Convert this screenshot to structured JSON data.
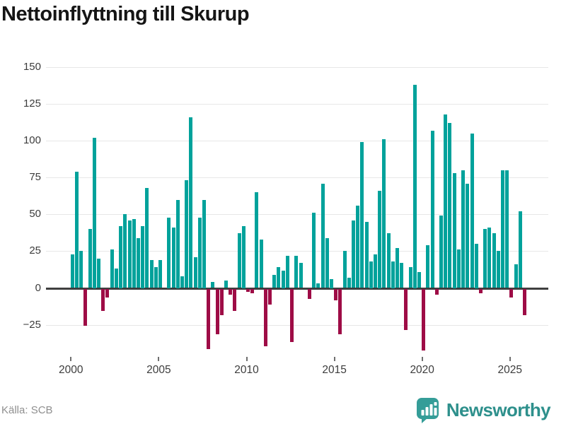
{
  "title": "Nettoinflyttning till Skurup",
  "footer": {
    "source": "Källa: SCB",
    "brand": "Newsworthy"
  },
  "colors": {
    "positive_bar": "#00a29b",
    "negative_bar": "#9e0c46",
    "gridline": "#e7e7e7",
    "zero_axis": "#3f3f3f",
    "brand_icon": "#359d98",
    "brand_text": "#2e908c"
  },
  "chart_data": {
    "type": "bar",
    "title": "Nettoinflyttning till Skurup",
    "frequency": "quarterly",
    "period_start": "2000Q1",
    "period_end": "2025Q4",
    "grid": true,
    "ylim": [
      -50,
      150
    ],
    "xlabel": "",
    "ylabel": "",
    "x_tick_labels": [
      "2000",
      "2005",
      "2010",
      "2015",
      "2020",
      "2025"
    ],
    "y_ticks": [
      {
        "v": 150,
        "label": "150"
      },
      {
        "v": 125,
        "label": "125"
      },
      {
        "v": 100,
        "label": "100"
      },
      {
        "v": 75,
        "label": "75"
      },
      {
        "v": 50,
        "label": "50"
      },
      {
        "v": 25,
        "label": "25"
      },
      {
        "v": 0,
        "label": "0"
      },
      {
        "v": -25,
        "label": "−25"
      }
    ],
    "values": [
      23,
      79,
      25,
      -25,
      40,
      102,
      20,
      -15,
      -6,
      26,
      13,
      42,
      50,
      46,
      47,
      34,
      42,
      68,
      19,
      14,
      19,
      0,
      48,
      41,
      60,
      8,
      73,
      116,
      21,
      48,
      60,
      -41,
      4,
      -31,
      -18,
      5,
      -4,
      -15,
      37,
      42,
      -2,
      -3,
      65,
      33,
      -39,
      -11,
      9,
      14,
      12,
      22,
      -36,
      22,
      17,
      0,
      -7,
      51,
      3,
      71,
      34,
      6,
      -8,
      -31,
      25,
      7,
      46,
      56,
      99,
      45,
      18,
      23,
      66,
      101,
      37,
      18,
      27,
      17,
      -28,
      14,
      138,
      11,
      -42,
      29,
      107,
      -4,
      49,
      118,
      112,
      78,
      26,
      80,
      71,
      105,
      30,
      -3,
      40,
      41,
      37,
      25,
      80,
      80,
      -6,
      16,
      52,
      -18
    ]
  }
}
